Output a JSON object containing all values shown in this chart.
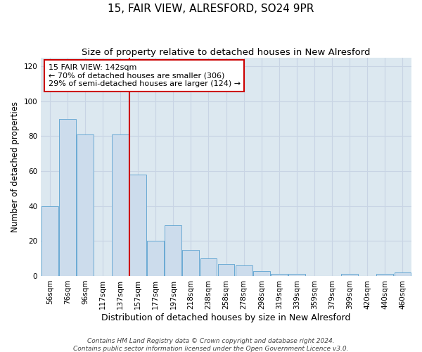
{
  "title": "15, FAIR VIEW, ALRESFORD, SO24 9PR",
  "subtitle": "Size of property relative to detached houses in New Alresford",
  "xlabel": "Distribution of detached houses by size in New Alresford",
  "ylabel": "Number of detached properties",
  "categories": [
    "56sqm",
    "76sqm",
    "96sqm",
    "117sqm",
    "137sqm",
    "157sqm",
    "177sqm",
    "197sqm",
    "218sqm",
    "238sqm",
    "258sqm",
    "278sqm",
    "298sqm",
    "319sqm",
    "339sqm",
    "359sqm",
    "379sqm",
    "399sqm",
    "420sqm",
    "440sqm",
    "460sqm"
  ],
  "values": [
    40,
    90,
    81,
    0,
    81,
    58,
    20,
    29,
    15,
    10,
    7,
    6,
    3,
    1,
    1,
    0,
    0,
    1,
    0,
    1,
    2
  ],
  "bar_color": "#ccdcec",
  "bar_edge_color": "#6aaad4",
  "vline_index": 5,
  "vline_color": "#cc0000",
  "annotation_line1": "15 FAIR VIEW: 142sqm",
  "annotation_line2": "← 70% of detached houses are smaller (306)",
  "annotation_line3": "29% of semi-detached houses are larger (124) →",
  "annotation_box_facecolor": "#ffffff",
  "annotation_box_edgecolor": "#cc0000",
  "ylim": [
    0,
    125
  ],
  "yticks": [
    0,
    20,
    40,
    60,
    80,
    100,
    120
  ],
  "grid_color": "#c8d4e4",
  "plot_bg_color": "#dce8f0",
  "fig_bg_color": "#ffffff",
  "footer_line1": "Contains HM Land Registry data © Crown copyright and database right 2024.",
  "footer_line2": "Contains public sector information licensed under the Open Government Licence v3.0.",
  "title_fontsize": 11,
  "subtitle_fontsize": 9.5,
  "xlabel_fontsize": 9,
  "ylabel_fontsize": 8.5,
  "tick_fontsize": 7.5,
  "annot_fontsize": 8,
  "footer_fontsize": 6.5
}
